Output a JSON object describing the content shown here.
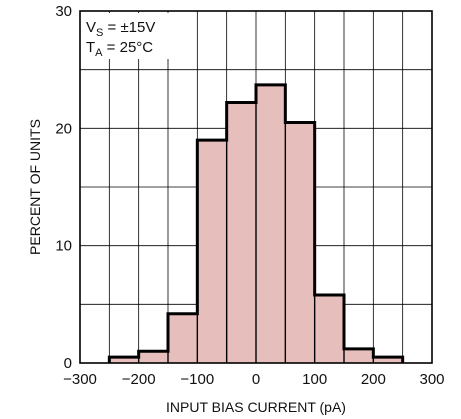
{
  "chart_data": {
    "type": "bar",
    "histogram": true,
    "xlabel": "INPUT BIAS CURRENT (pA)",
    "ylabel": "PERCENT OF UNITS",
    "xlim": [
      -300,
      300
    ],
    "ylim": [
      0,
      30
    ],
    "x_ticks": [
      -300,
      -200,
      -100,
      0,
      100,
      200,
      300
    ],
    "x_tick_labels": [
      "−300",
      "−200",
      "−100",
      "0",
      "100",
      "200",
      "300"
    ],
    "y_ticks": [
      0,
      10,
      20,
      30
    ],
    "y_tick_labels": [
      "0",
      "10",
      "20",
      "30"
    ],
    "grid": true,
    "grid_x_step": 50,
    "grid_y_step": 5,
    "bar_color": "#e6bebb",
    "bar_edge_color": "#000000",
    "bins": [
      {
        "x0": -250,
        "x1": -200,
        "value": 0.5
      },
      {
        "x0": -200,
        "x1": -150,
        "value": 1.0
      },
      {
        "x0": -150,
        "x1": -100,
        "value": 4.2
      },
      {
        "x0": -100,
        "x1": -50,
        "value": 19.0
      },
      {
        "x0": -50,
        "x1": 0,
        "value": 22.2
      },
      {
        "x0": 0,
        "x1": 50,
        "value": 23.7
      },
      {
        "x0": 50,
        "x1": 100,
        "value": 20.5
      },
      {
        "x0": 100,
        "x1": 150,
        "value": 5.8
      },
      {
        "x0": 150,
        "x1": 200,
        "value": 1.2
      },
      {
        "x0": 200,
        "x1": 250,
        "value": 0.5
      }
    ],
    "annotations": {
      "line1": {
        "main": "V",
        "sub": "S",
        "rest": " = ±15V"
      },
      "line2": {
        "main": "T",
        "sub": "A",
        "rest": " = 25°C"
      }
    }
  }
}
